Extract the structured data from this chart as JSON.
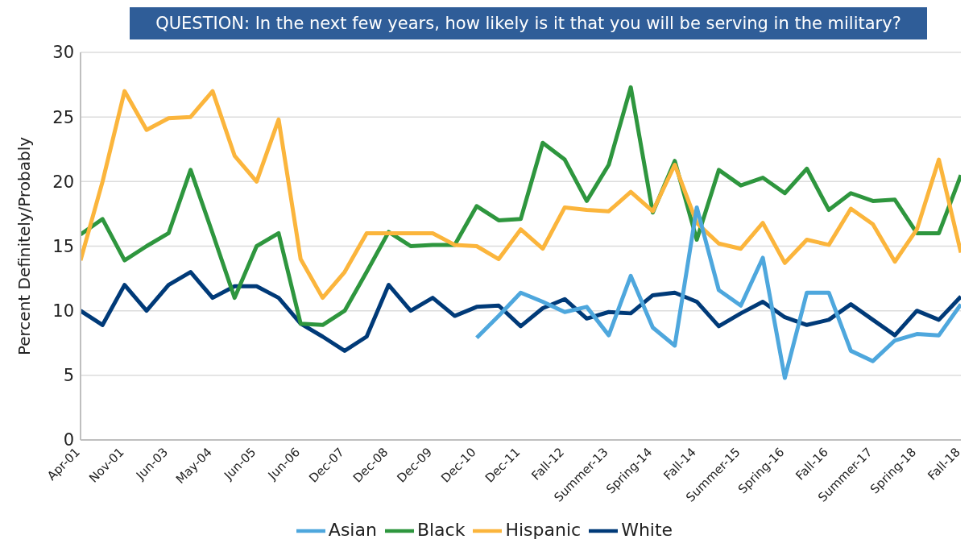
{
  "chart_data": {
    "type": "line",
    "title": "QUESTION: In the next few years, how likely is it that you will be serving in the military?",
    "ylabel": "Percent Definitely/Probably",
    "categories": [
      "Apr-01",
      null,
      "Nov-01",
      null,
      "Jun-03",
      null,
      "May-04",
      null,
      "Jun-05",
      null,
      "Jun-06",
      null,
      "Dec-07",
      null,
      "Dec-08",
      null,
      "Dec-09",
      null,
      "Dec-10",
      null,
      "Dec-11",
      null,
      "Fall-12",
      null,
      "Summer-13",
      null,
      "Spring-14",
      null,
      "Fall-14",
      null,
      "Summer-15",
      null,
      "Spring-16",
      null,
      "Fall-16",
      null,
      "Summer-17",
      null,
      "Spring-18",
      null,
      "Fall-18"
    ],
    "series": [
      {
        "name": "White",
        "color": "#003a78",
        "values": [
          10.0,
          8.9,
          12.0,
          10.0,
          12.0,
          13.0,
          11.0,
          11.9,
          11.9,
          11.0,
          9.0,
          8.0,
          6.9,
          8.0,
          12.0,
          10.0,
          11.0,
          9.6,
          10.3,
          10.4,
          8.8,
          10.2,
          10.9,
          9.4,
          9.9,
          9.8,
          11.2,
          11.4,
          10.7,
          8.8,
          9.8,
          10.7,
          9.5,
          8.9,
          9.3,
          10.5,
          9.3,
          8.1,
          10.0,
          9.3,
          11.1
        ]
      },
      {
        "name": "Black",
        "color": "#2e963e",
        "values": [
          15.9,
          17.1,
          13.9,
          15.0,
          16.0,
          20.9,
          16.0,
          11.0,
          15.0,
          16.0,
          9.0,
          8.9,
          10.0,
          13.0,
          16.1,
          15.0,
          15.1,
          15.1,
          18.1,
          17.0,
          17.1,
          23.0,
          21.7,
          18.5,
          21.3,
          27.3,
          17.6,
          21.6,
          15.5,
          20.9,
          19.7,
          20.3,
          19.1,
          21.0,
          17.8,
          19.1,
          18.5,
          18.6,
          16.0,
          16.0,
          20.5
        ]
      },
      {
        "name": "Hispanic",
        "color": "#fbb53c",
        "values": [
          13.9,
          20.0,
          27.0,
          24.0,
          24.9,
          25.0,
          27.0,
          22.0,
          20.0,
          24.8,
          14.0,
          11.0,
          13.0,
          16.0,
          16.0,
          16.0,
          16.0,
          15.1,
          15.0,
          14.0,
          16.3,
          14.8,
          18.0,
          17.8,
          17.7,
          19.2,
          17.7,
          21.3,
          16.8,
          15.2,
          14.8,
          16.8,
          13.7,
          15.5,
          15.1,
          17.9,
          16.7,
          13.8,
          16.3,
          21.7,
          14.5
        ]
      },
      {
        "name": "Asian",
        "color": "#4ea7dd",
        "values": [
          null,
          null,
          null,
          null,
          null,
          null,
          null,
          null,
          null,
          null,
          null,
          null,
          null,
          null,
          null,
          null,
          null,
          null,
          7.9,
          9.6,
          11.4,
          10.7,
          9.9,
          10.3,
          8.1,
          12.7,
          8.7,
          7.3,
          18.0,
          11.6,
          10.4,
          14.1,
          4.8,
          11.4,
          11.4,
          6.9,
          6.1,
          7.7,
          8.2,
          8.1,
          10.5
        ]
      }
    ],
    "ylim": [
      0,
      30
    ],
    "yticks": [
      0,
      5,
      10,
      15,
      20,
      25,
      30
    ],
    "grid": "y",
    "legend": "bottom",
    "marker": "none",
    "line_style": "solid"
  }
}
